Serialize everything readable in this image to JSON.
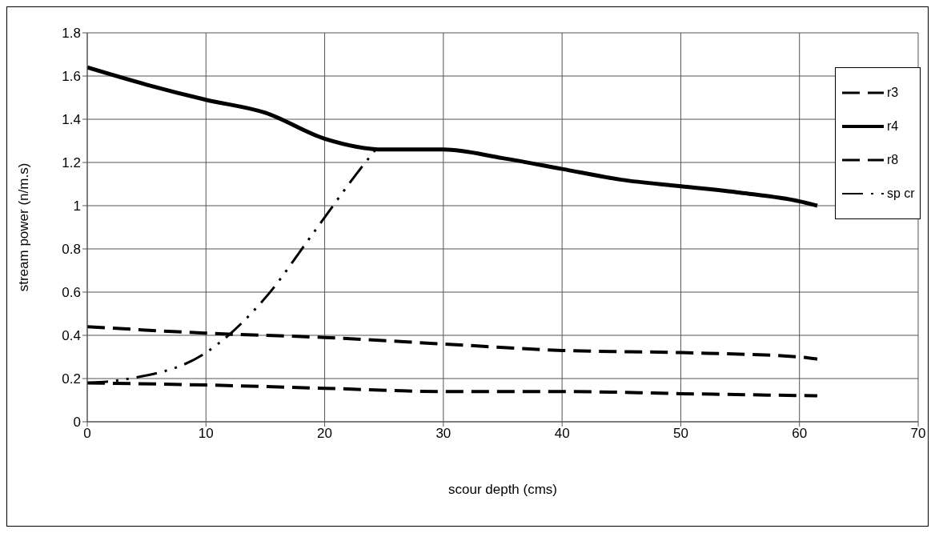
{
  "chart_data": {
    "type": "line",
    "xlabel": "scour depth (cms)",
    "ylabel": "stream power (n/m.s)",
    "xlim": [
      0,
      70
    ],
    "xticks": [
      0,
      10,
      20,
      30,
      40,
      50,
      60,
      70
    ],
    "ylim": [
      0,
      1.8
    ],
    "yticks": [
      0,
      0.2,
      0.4,
      0.6,
      0.8,
      1,
      1.2,
      1.4,
      1.6,
      1.8
    ],
    "grid": true,
    "legend": "right",
    "marker": "none",
    "series": [
      {
        "name": "r3",
        "color": "#000000",
        "line_style": "dashed",
        "x": [
          0,
          10,
          20,
          30,
          40,
          50,
          60,
          61.5
        ],
        "values": [
          0.44,
          0.41,
          0.39,
          0.36,
          0.33,
          0.32,
          0.3,
          0.29
        ]
      },
      {
        "name": "r4",
        "color": "#000000",
        "line_style": "solid",
        "x": [
          0,
          5,
          10,
          15,
          20,
          25,
          30,
          35,
          40,
          45,
          50,
          55,
          60,
          61.5
        ],
        "values": [
          1.64,
          1.56,
          1.49,
          1.43,
          1.31,
          1.26,
          1.26,
          1.22,
          1.17,
          1.12,
          1.09,
          1.06,
          1.02,
          1.0
        ]
      },
      {
        "name": "r8",
        "color": "#000000",
        "line_style": "dashed",
        "x": [
          0,
          10,
          20,
          30,
          40,
          50,
          61.5
        ],
        "values": [
          0.18,
          0.17,
          0.155,
          0.14,
          0.14,
          0.13,
          0.12
        ]
      },
      {
        "name": "sp cr",
        "color": "#000000",
        "line_style": "dotted",
        "x": [
          0,
          3.6,
          10,
          12.1,
          15.1,
          19,
          23,
          24.6
        ],
        "values": [
          0.18,
          0.2,
          0.32,
          0.41,
          0.58,
          0.87,
          1.17,
          1.28
        ]
      }
    ]
  }
}
